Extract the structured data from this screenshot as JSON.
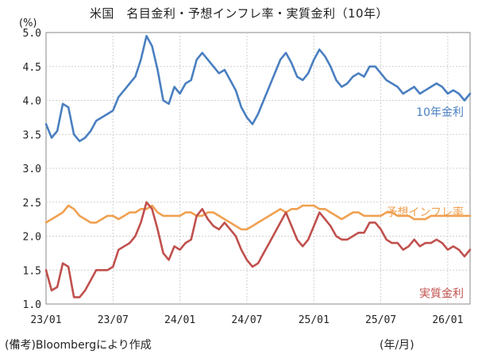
{
  "chart_data": {
    "type": "line",
    "title": "米国　名目金利・予想インフレ率・実質金利（10年）",
    "ylabel": "(%)",
    "xlabel": "(年/月)",
    "source": "(備考)Bloombergにより作成",
    "ylim": [
      1.0,
      5.0
    ],
    "yticks": [
      "5.0",
      "4.5",
      "4.0",
      "3.5",
      "3.0",
      "2.5",
      "2.0",
      "1.5",
      "1.0"
    ],
    "yticks_values": [
      5.0,
      4.5,
      4.0,
      3.5,
      3.0,
      2.5,
      2.0,
      1.5,
      1.0
    ],
    "xticks": [
      "23/01",
      "23/07",
      "24/01",
      "24/07",
      "25/01",
      "25/07",
      "26/01"
    ],
    "xticks_months": [
      0,
      6,
      12,
      18,
      24,
      30,
      36
    ],
    "xlim_months": [
      0,
      38
    ],
    "grid": true,
    "series": [
      {
        "name": "10年金利",
        "color": "#4a7fc0",
        "x": [
          0,
          0.5,
          1,
          1.5,
          2,
          2.5,
          3,
          3.5,
          4,
          4.5,
          5,
          5.5,
          6,
          6.5,
          7,
          7.5,
          8,
          8.5,
          9,
          9.5,
          10,
          10.5,
          11,
          11.5,
          12,
          12.5,
          13,
          13.5,
          14,
          14.5,
          15,
          15.5,
          16,
          16.5,
          17,
          17.5,
          18,
          18.5,
          19,
          19.5,
          20,
          20.5,
          21,
          21.5,
          22,
          22.5,
          23,
          23.5,
          24,
          24.5,
          25,
          25.5,
          26,
          26.5,
          27,
          27.5,
          28,
          28.5,
          29,
          29.5,
          30,
          30.5,
          31,
          31.5,
          32,
          32.5,
          33,
          33.5,
          34,
          34.5,
          35,
          35.5,
          36,
          36.5,
          37,
          37.5,
          38
        ],
        "values": [
          3.65,
          3.45,
          3.55,
          3.95,
          3.9,
          3.5,
          3.4,
          3.45,
          3.55,
          3.7,
          3.75,
          3.8,
          3.85,
          4.05,
          4.15,
          4.25,
          4.35,
          4.6,
          4.95,
          4.8,
          4.45,
          4.0,
          3.95,
          4.2,
          4.1,
          4.25,
          4.3,
          4.6,
          4.7,
          4.6,
          4.5,
          4.4,
          4.45,
          4.3,
          4.15,
          3.9,
          3.75,
          3.65,
          3.8,
          4.0,
          4.2,
          4.4,
          4.6,
          4.7,
          4.55,
          4.35,
          4.3,
          4.4,
          4.6,
          4.75,
          4.65,
          4.5,
          4.3,
          4.2,
          4.25,
          4.35,
          4.4,
          4.35,
          4.5,
          4.5,
          4.4,
          4.3,
          4.25,
          4.2,
          4.1,
          4.15,
          4.2,
          4.1,
          4.15,
          4.2,
          4.25,
          4.2,
          4.1,
          4.15,
          4.1,
          4.0,
          4.1
        ]
      },
      {
        "name": "予想インフレ率",
        "color": "#f0a050",
        "x": [
          0,
          0.5,
          1,
          1.5,
          2,
          2.5,
          3,
          3.5,
          4,
          4.5,
          5,
          5.5,
          6,
          6.5,
          7,
          7.5,
          8,
          8.5,
          9,
          9.5,
          10,
          10.5,
          11,
          11.5,
          12,
          12.5,
          13,
          13.5,
          14,
          14.5,
          15,
          15.5,
          16,
          16.5,
          17,
          17.5,
          18,
          18.5,
          19,
          19.5,
          20,
          20.5,
          21,
          21.5,
          22,
          22.5,
          23,
          23.5,
          24,
          24.5,
          25,
          25.5,
          26,
          26.5,
          27,
          27.5,
          28,
          28.5,
          29,
          29.5,
          30,
          30.5,
          31,
          31.5,
          32,
          32.5,
          33,
          33.5,
          34,
          34.5,
          35,
          35.5,
          36,
          36.5,
          37,
          37.5,
          38
        ],
        "values": [
          2.2,
          2.25,
          2.3,
          2.35,
          2.45,
          2.4,
          2.3,
          2.25,
          2.2,
          2.2,
          2.25,
          2.3,
          2.3,
          2.25,
          2.3,
          2.35,
          2.35,
          2.4,
          2.4,
          2.45,
          2.35,
          2.3,
          2.3,
          2.3,
          2.3,
          2.35,
          2.35,
          2.3,
          2.3,
          2.35,
          2.35,
          2.3,
          2.25,
          2.2,
          2.15,
          2.1,
          2.1,
          2.15,
          2.2,
          2.25,
          2.3,
          2.35,
          2.4,
          2.35,
          2.4,
          2.4,
          2.45,
          2.45,
          2.45,
          2.4,
          2.4,
          2.35,
          2.3,
          2.25,
          2.3,
          2.35,
          2.35,
          2.3,
          2.3,
          2.3,
          2.3,
          2.35,
          2.35,
          2.3,
          2.3,
          2.3,
          2.25,
          2.25,
          2.25,
          2.3,
          2.3,
          2.3,
          2.3,
          2.3,
          2.3,
          2.3,
          2.3
        ]
      },
      {
        "name": "実質金利",
        "color": "#c0504d",
        "x": [
          0,
          0.5,
          1,
          1.5,
          2,
          2.5,
          3,
          3.5,
          4,
          4.5,
          5,
          5.5,
          6,
          6.5,
          7,
          7.5,
          8,
          8.5,
          9,
          9.5,
          10,
          10.5,
          11,
          11.5,
          12,
          12.5,
          13,
          13.5,
          14,
          14.5,
          15,
          15.5,
          16,
          16.5,
          17,
          17.5,
          18,
          18.5,
          19,
          19.5,
          20,
          20.5,
          21,
          21.5,
          22,
          22.5,
          23,
          23.5,
          24,
          24.5,
          25,
          25.5,
          26,
          26.5,
          27,
          27.5,
          28,
          28.5,
          29,
          29.5,
          30,
          30.5,
          31,
          31.5,
          32,
          32.5,
          33,
          33.5,
          34,
          34.5,
          35,
          35.5,
          36,
          36.5,
          37,
          37.5,
          38
        ],
        "values": [
          1.5,
          1.2,
          1.25,
          1.6,
          1.55,
          1.1,
          1.1,
          1.2,
          1.35,
          1.5,
          1.5,
          1.5,
          1.55,
          1.8,
          1.85,
          1.9,
          2.0,
          2.2,
          2.5,
          2.4,
          2.1,
          1.75,
          1.65,
          1.85,
          1.8,
          1.9,
          1.95,
          2.3,
          2.4,
          2.25,
          2.15,
          2.1,
          2.2,
          2.1,
          2.0,
          1.8,
          1.65,
          1.55,
          1.6,
          1.75,
          1.9,
          2.05,
          2.2,
          2.35,
          2.15,
          1.95,
          1.85,
          1.95,
          2.15,
          2.35,
          2.25,
          2.15,
          2.0,
          1.95,
          1.95,
          2.0,
          2.05,
          2.05,
          2.2,
          2.2,
          2.1,
          1.95,
          1.9,
          1.9,
          1.8,
          1.85,
          1.95,
          1.85,
          1.9,
          1.9,
          1.95,
          1.9,
          1.8,
          1.85,
          1.8,
          1.7,
          1.8
        ]
      }
    ]
  }
}
